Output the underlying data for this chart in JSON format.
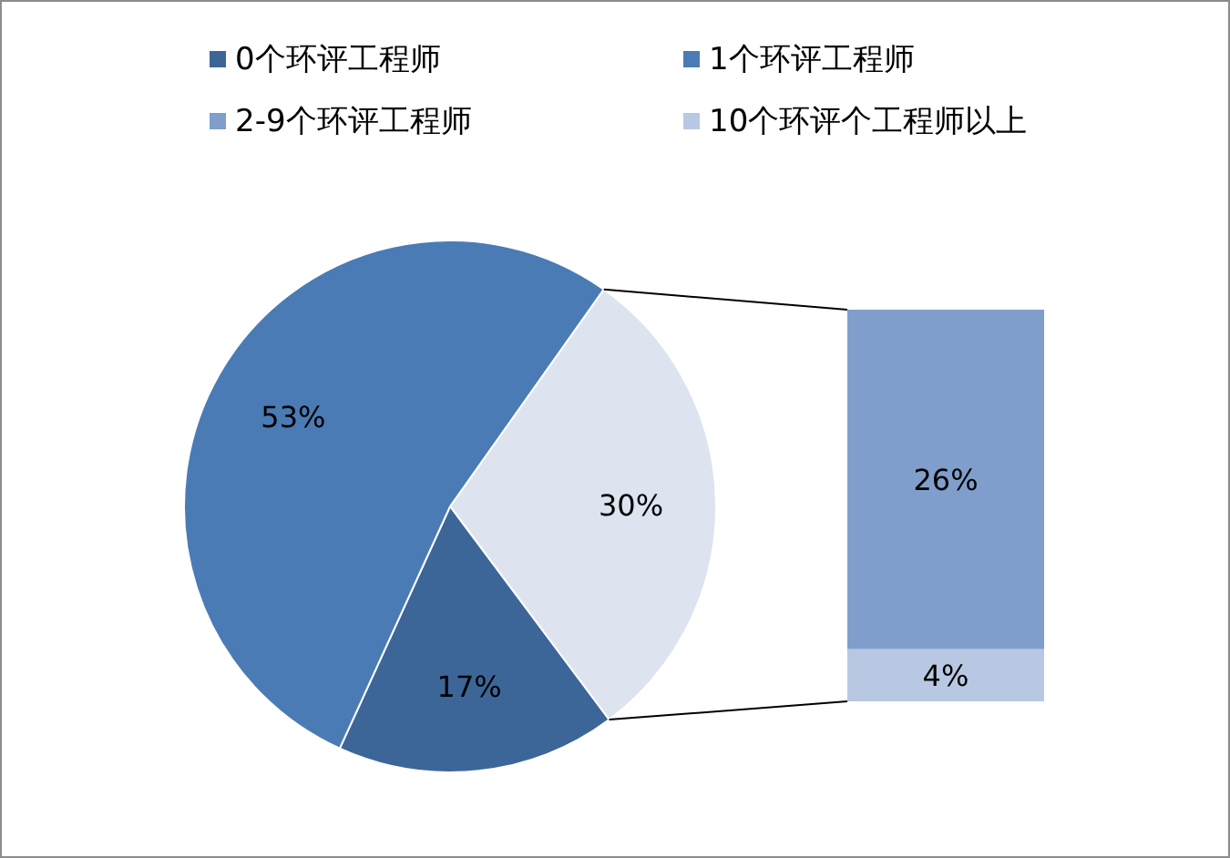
{
  "chart_data": [
    {
      "type": "pie",
      "categories": [
        "0个环评工程师",
        "1个环评工程师",
        null
      ],
      "values": [
        17,
        53,
        30
      ],
      "colors": [
        "#3d6698",
        "#4a7bb5",
        "#dde3ef"
      ],
      "value_labels": [
        "17%",
        "53%",
        "30%"
      ],
      "legend": "top"
    },
    {
      "type": "bar",
      "stacked": true,
      "categories": [
        null
      ],
      "series": [
        {
          "name": "10个环评个工程师以上",
          "color": "#b9c8e2",
          "values": [
            4
          ],
          "value_labels": [
            "4%"
          ]
        },
        {
          "name": "2-9个环评工程师",
          "color": "#7f9ecb",
          "values": [
            26
          ],
          "value_labels": [
            "26%"
          ]
        }
      ],
      "legend": "top"
    }
  ]
}
